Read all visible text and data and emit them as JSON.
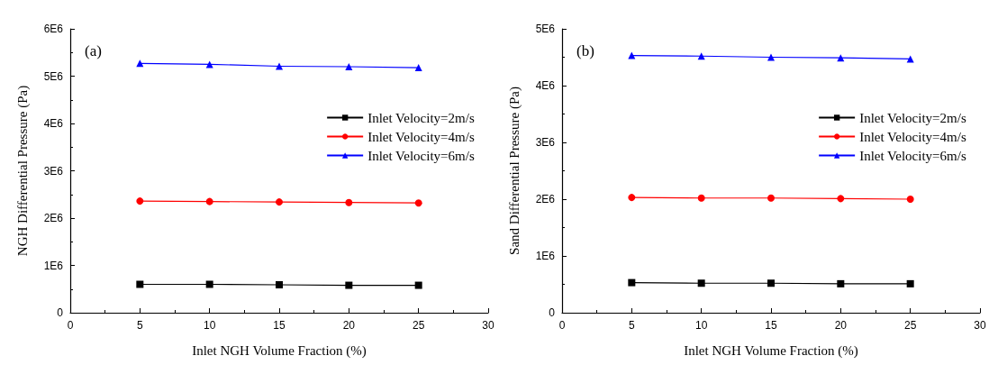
{
  "chart_data": [
    {
      "type": "line",
      "xlabel": "Inlet NGH Volume Fraction (%)",
      "ylabel": "NGH Differential Pressure (Pa)",
      "annotations": [
        "(a)"
      ],
      "x": [
        5,
        10,
        15,
        20,
        25
      ],
      "xlim": [
        0,
        30
      ],
      "xticks": [
        0,
        5,
        10,
        15,
        20,
        25,
        30
      ],
      "ylim": [
        0,
        6000000
      ],
      "yticks": [
        {
          "value": 0,
          "label": "0"
        },
        {
          "value": 1000000,
          "label": "1E6"
        },
        {
          "value": 2000000,
          "label": "2E6"
        },
        {
          "value": 3000000,
          "label": "3E6"
        },
        {
          "value": 4000000,
          "label": "4E6"
        },
        {
          "value": 5000000,
          "label": "5E6"
        },
        {
          "value": 6000000,
          "label": "6E6"
        }
      ],
      "grid": false,
      "legend": "right",
      "line_style": "solid",
      "series": [
        {
          "name": "Inlet Velocity=2m/s",
          "color": "#000000",
          "marker": "square",
          "values": [
            600000,
            600000,
            590000,
            580000,
            580000
          ]
        },
        {
          "name": "Inlet Velocity=4m/s",
          "color": "#ff0000",
          "marker": "circle",
          "values": [
            2360000,
            2350000,
            2340000,
            2330000,
            2320000
          ]
        },
        {
          "name": "Inlet Velocity=6m/s",
          "color": "#0000ff",
          "marker": "triangle",
          "values": [
            5270000,
            5250000,
            5210000,
            5200000,
            5180000
          ]
        }
      ]
    },
    {
      "type": "line",
      "xlabel": "Inlet NGH Volume Fraction (%)",
      "ylabel": "Sand Differential Pressure (Pa)",
      "annotations": [
        "(b)"
      ],
      "x": [
        5,
        10,
        15,
        20,
        25
      ],
      "xlim": [
        0,
        30
      ],
      "xticks": [
        0,
        5,
        10,
        15,
        20,
        25,
        30
      ],
      "ylim": [
        0,
        5000000
      ],
      "yticks": [
        {
          "value": 0,
          "label": "0"
        },
        {
          "value": 1000000,
          "label": "1E6"
        },
        {
          "value": 2000000,
          "label": "2E6"
        },
        {
          "value": 3000000,
          "label": "3E6"
        },
        {
          "value": 4000000,
          "label": "4E6"
        },
        {
          "value": 5000000,
          "label": "5E6"
        }
      ],
      "grid": false,
      "legend": "right",
      "line_style": "solid",
      "series": [
        {
          "name": "Inlet Velocity=2m/s",
          "color": "#000000",
          "marker": "square",
          "values": [
            530000,
            520000,
            520000,
            510000,
            510000
          ]
        },
        {
          "name": "Inlet Velocity=4m/s",
          "color": "#ff0000",
          "marker": "circle",
          "values": [
            2030000,
            2020000,
            2020000,
            2010000,
            2000000
          ]
        },
        {
          "name": "Inlet Velocity=6m/s",
          "color": "#0000ff",
          "marker": "triangle",
          "values": [
            4530000,
            4520000,
            4500000,
            4490000,
            4470000
          ]
        }
      ]
    }
  ]
}
